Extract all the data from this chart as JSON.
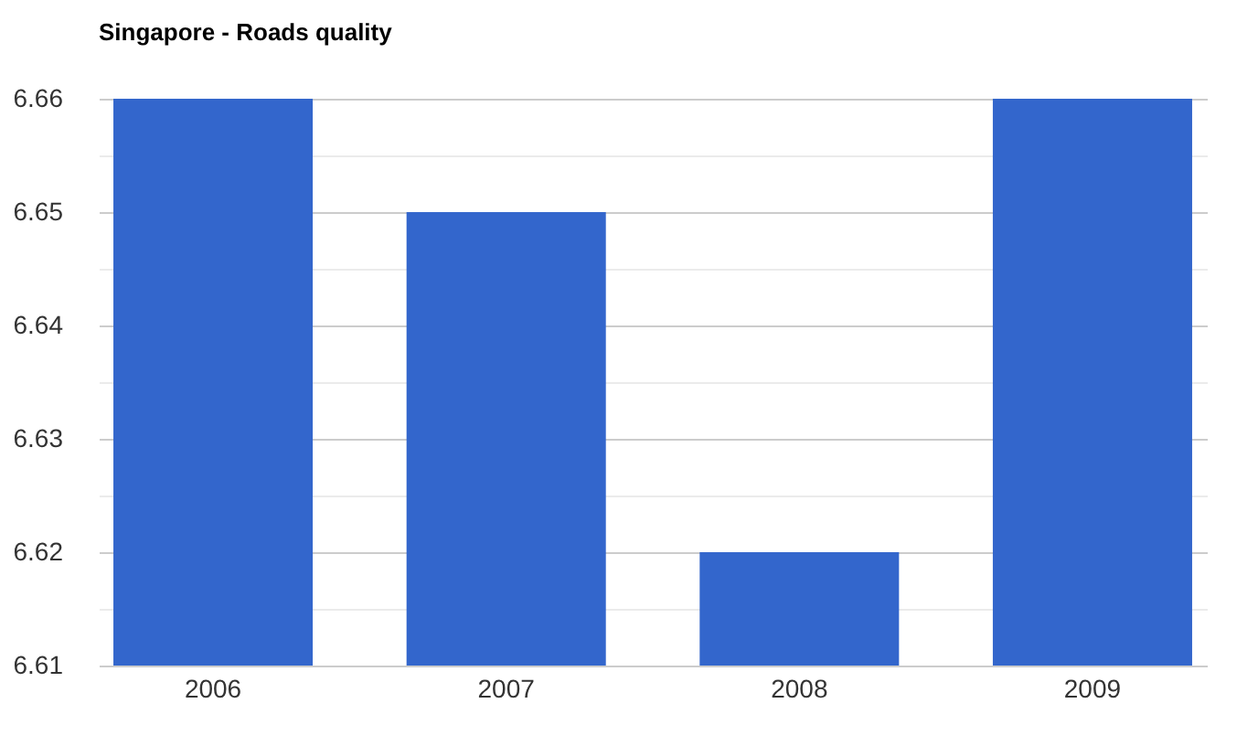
{
  "chart_data": {
    "type": "bar",
    "title": "Singapore - Roads quality",
    "categories": [
      "2006",
      "2007",
      "2008",
      "2009"
    ],
    "values": [
      6.66,
      6.65,
      6.62,
      6.66
    ],
    "color": "#3366cc",
    "ylim": [
      6.61,
      6.66
    ],
    "yticks": [
      6.61,
      {
        "value": 6.615,
        "label": null
      },
      6.62,
      {
        "value": 6.625,
        "label": null
      },
      6.63,
      {
        "value": 6.635,
        "label": null
      },
      6.64,
      {
        "value": 6.645,
        "label": null
      },
      6.65,
      {
        "value": 6.655,
        "label": null
      },
      6.66
    ],
    "grid": true
  }
}
